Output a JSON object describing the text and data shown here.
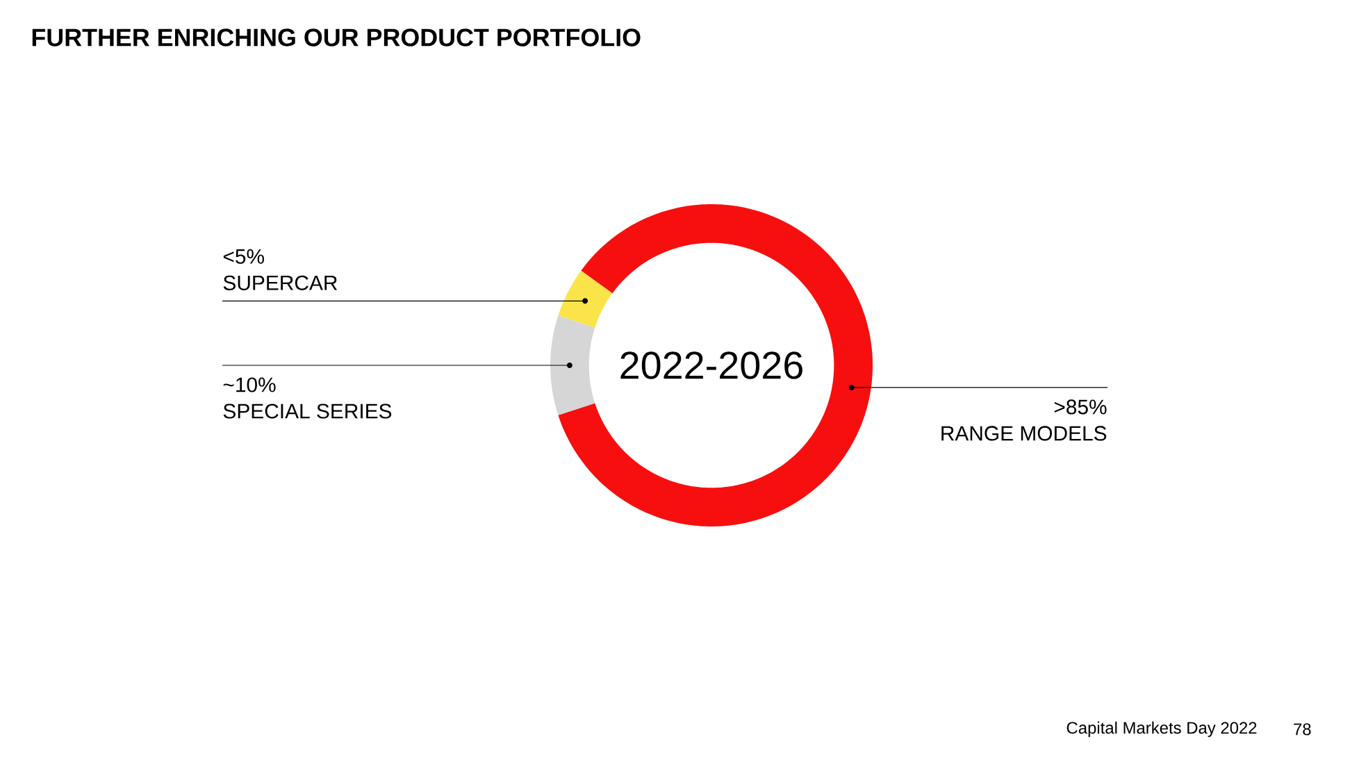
{
  "chart_data": {
    "type": "donut",
    "title": "FURTHER ENRICHING OUR PRODUCT PORTFOLIO",
    "categories": [
      "RANGE MODELS",
      "SPECIAL SERIES",
      "SUPERCAR"
    ],
    "values": [
      85,
      10,
      5
    ],
    "value_labels": [
      ">85%",
      "~10%",
      "<5%"
    ],
    "colors": [
      "#f70f0f",
      "#d6d6d6",
      "#fbe44a"
    ],
    "annotations": [
      "2022-2026",
      "Capital Markets Day 2022",
      "78"
    ]
  }
}
